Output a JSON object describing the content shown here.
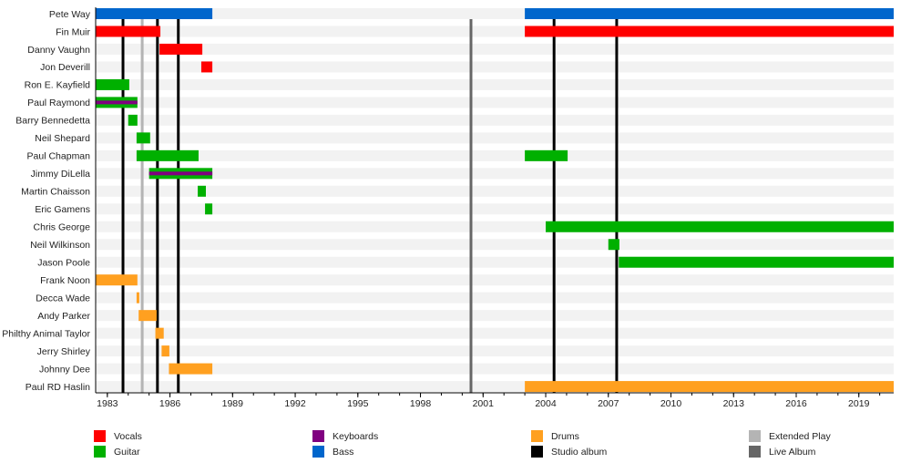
{
  "chart_data": {
    "type": "timeline",
    "xlim": [
      1982.44,
      2020.67
    ],
    "x_major_ticks": [
      1983,
      1986,
      1989,
      1992,
      1995,
      1998,
      2001,
      2004,
      2007,
      2010,
      2013,
      2016,
      2019
    ],
    "x_minor_tick_step": 1,
    "colors": {
      "Vocals": "#ff0000",
      "Guitar": "#00b000",
      "Keyboards": "#800080",
      "Bass": "#0066cc",
      "Drums": "#ffa020",
      "Studio album": "#000000",
      "Extended Play": "#b4b4b4",
      "Live Album": "#666666",
      "row_stripe": "#f2f2f2"
    },
    "members": [
      {
        "name": "Pete Way",
        "bars": [
          {
            "role": "Bass",
            "start": 1982.44,
            "end": 1988.03
          },
          {
            "role": "Bass",
            "start": 2003.0,
            "end": 2020.67
          }
        ]
      },
      {
        "name": "Fin Muir",
        "bars": [
          {
            "role": "Vocals",
            "start": 1982.44,
            "end": 1985.54
          },
          {
            "role": "Vocals",
            "start": 2003.0,
            "end": 2020.67
          }
        ]
      },
      {
        "name": "Danny Vaughn",
        "bars": [
          {
            "role": "Vocals",
            "start": 1985.5,
            "end": 1987.55
          }
        ]
      },
      {
        "name": "Jon Deverill",
        "bars": [
          {
            "role": "Vocals",
            "start": 1987.5,
            "end": 1988.03
          }
        ]
      },
      {
        "name": "Ron E. Kayfield",
        "bars": [
          {
            "role": "Guitar",
            "start": 1982.44,
            "end": 1984.05
          }
        ]
      },
      {
        "name": "Paul Raymond",
        "bars": [
          {
            "role": "Guitar",
            "start": 1982.44,
            "end": 1984.44,
            "secondary": "Keyboards"
          }
        ]
      },
      {
        "name": "Barry Bennedetta",
        "bars": [
          {
            "role": "Guitar",
            "start": 1984.0,
            "end": 1984.44
          }
        ]
      },
      {
        "name": "Neil Shepard",
        "bars": [
          {
            "role": "Guitar",
            "start": 1984.4,
            "end": 1985.05
          }
        ]
      },
      {
        "name": "Paul Chapman",
        "bars": [
          {
            "role": "Guitar",
            "start": 1984.4,
            "end": 1987.37
          },
          {
            "role": "Guitar",
            "start": 2003.0,
            "end": 2005.05
          }
        ]
      },
      {
        "name": "Jimmy DiLella",
        "bars": [
          {
            "role": "Guitar",
            "start": 1985.0,
            "end": 1988.03,
            "secondary": "Keyboards"
          }
        ]
      },
      {
        "name": "Martin Chaisson",
        "bars": [
          {
            "role": "Guitar",
            "start": 1987.33,
            "end": 1987.72
          }
        ]
      },
      {
        "name": "Eric Gamens",
        "bars": [
          {
            "role": "Guitar",
            "start": 1987.68,
            "end": 1988.03
          }
        ]
      },
      {
        "name": "Chris George",
        "bars": [
          {
            "role": "Guitar",
            "start": 2004.0,
            "end": 2020.67
          }
        ]
      },
      {
        "name": "Neil Wilkinson",
        "bars": [
          {
            "role": "Guitar",
            "start": 2007.0,
            "end": 2007.53
          }
        ]
      },
      {
        "name": "Jason Poole",
        "bars": [
          {
            "role": "Guitar",
            "start": 2007.5,
            "end": 2020.67
          }
        ]
      },
      {
        "name": "Frank Noon",
        "bars": [
          {
            "role": "Drums",
            "start": 1982.44,
            "end": 1984.44
          }
        ]
      },
      {
        "name": "Decca Wade",
        "bars": [
          {
            "role": "Drums",
            "start": 1984.4,
            "end": 1984.53
          }
        ]
      },
      {
        "name": "Andy Parker",
        "bars": [
          {
            "role": "Drums",
            "start": 1984.5,
            "end": 1985.36
          }
        ]
      },
      {
        "name": "Phil Philthy Animal Taylor",
        "bars": [
          {
            "role": "Drums",
            "start": 1985.3,
            "end": 1985.7
          }
        ]
      },
      {
        "name": "Jerry Shirley",
        "bars": [
          {
            "role": "Drums",
            "start": 1985.6,
            "end": 1985.97
          }
        ]
      },
      {
        "name": "Johnny Dee",
        "bars": [
          {
            "role": "Drums",
            "start": 1985.95,
            "end": 1988.03
          }
        ]
      },
      {
        "name": "Paul RD Haslin",
        "bars": [
          {
            "role": "Drums",
            "start": 2003.0,
            "end": 2020.67
          }
        ]
      }
    ],
    "releases": [
      {
        "type": "Studio album",
        "year": 1983.75
      },
      {
        "type": "Extended Play",
        "year": 1984.67
      },
      {
        "type": "Studio album",
        "year": 1985.4
      },
      {
        "type": "Studio album",
        "year": 1986.4
      },
      {
        "type": "Live Album",
        "year": 2000.42
      },
      {
        "type": "Studio album",
        "year": 2004.4
      },
      {
        "type": "Studio album",
        "year": 2007.4
      }
    ],
    "legend": {
      "placement": "bottom",
      "items": [
        "Vocals",
        "Guitar",
        "Keyboards",
        "Bass",
        "Drums",
        "Studio album",
        "Extended Play",
        "Live Album"
      ]
    }
  }
}
